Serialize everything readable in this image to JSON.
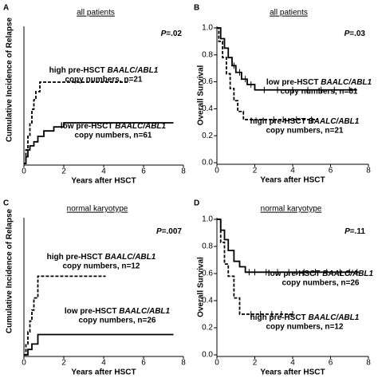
{
  "chart_data": [
    {
      "type": "step",
      "panel": "A",
      "title": "all patients",
      "p_label": "P",
      "p_value": "=.02",
      "ylabel": "Cumulative Incidence of Relapse",
      "xlabel": "Years after HSCT",
      "xlim": [
        0,
        8
      ],
      "xticks": [
        0,
        2,
        4,
        6,
        8
      ],
      "ylim": [
        0,
        1
      ],
      "series": [
        {
          "style": "dashed",
          "color": "#000000",
          "x": [
            0,
            0.1,
            0.2,
            0.3,
            0.4,
            0.5,
            0.6,
            0.8,
            5.3
          ],
          "values": [
            0,
            0.1,
            0.2,
            0.3,
            0.4,
            0.47,
            0.53,
            0.6,
            0.6
          ],
          "label_prefix": "high pre-HSCT ",
          "label_gene": "BAALC/ABL1",
          "label_count": "copy numbers, n=21"
        },
        {
          "style": "solid",
          "color": "#000000",
          "x": [
            0,
            0.1,
            0.2,
            0.3,
            0.5,
            0.7,
            1.0,
            1.5,
            2.0,
            7.5
          ],
          "values": [
            0,
            0.05,
            0.1,
            0.13,
            0.16,
            0.2,
            0.24,
            0.27,
            0.3,
            0.3
          ],
          "label_prefix": "low pre-HSCT ",
          "label_gene": "BAALC/ABL1",
          "label_count": "copy numbers, n=61"
        }
      ]
    },
    {
      "type": "step",
      "panel": "B",
      "title": "all patients",
      "p_label": "P",
      "p_value": "=.03",
      "ylabel": "Overall Survival",
      "xlabel": "Years after HSCT",
      "xlim": [
        0,
        8
      ],
      "xticks": [
        0,
        2,
        4,
        6,
        8
      ],
      "ylim": [
        0,
        1
      ],
      "yticks": [
        {
          "value": 0,
          "label": "0.0"
        },
        0.2,
        0.4,
        0.6,
        0.8,
        {
          "value": 1,
          "label": "1.0"
        }
      ],
      "series": [
        {
          "style": "solid",
          "color": "#000000",
          "x": [
            0,
            0.2,
            0.4,
            0.6,
            0.8,
            1.0,
            1.3,
            1.6,
            2.0,
            7.4
          ],
          "values": [
            1,
            0.92,
            0.85,
            0.78,
            0.72,
            0.67,
            0.62,
            0.58,
            0.54,
            0.54
          ],
          "censor_x": [
            0.9,
            1.2,
            1.5,
            1.8,
            2.5,
            3.2,
            4.0,
            4.8,
            5.5,
            6.2,
            7.0
          ],
          "censor_values": [
            0.72,
            0.67,
            0.62,
            0.58,
            0.54,
            0.54,
            0.54,
            0.54,
            0.54,
            0.54,
            0.54
          ],
          "label_prefix": "low pre-HSCT ",
          "label_gene": "BAALC/ABL1",
          "label_count": "copy numbers, n=61"
        },
        {
          "style": "dashed",
          "color": "#000000",
          "x": [
            0,
            0.1,
            0.3,
            0.5,
            0.7,
            0.9,
            1.1,
            1.4,
            5.3
          ],
          "values": [
            1,
            0.9,
            0.78,
            0.66,
            0.55,
            0.46,
            0.38,
            0.32,
            0.32
          ],
          "censor_x": [
            3.0,
            3.5,
            4.2,
            5.0
          ],
          "censor_values": [
            0.32,
            0.32,
            0.32,
            0.32
          ],
          "label_prefix": "high pre-HSCT ",
          "label_gene": "BAALC/ABL1",
          "label_count": "copy numbers, n=21"
        }
      ]
    },
    {
      "type": "step",
      "panel": "C",
      "title": "normal karyotype",
      "p_label": "P",
      "p_value": "=.007",
      "ylabel": "Cumulative Incidence of Relapse",
      "xlabel": "Years after HSCT",
      "xlim": [
        0,
        8
      ],
      "xticks": [
        0,
        2,
        4,
        6,
        8
      ],
      "ylim": [
        0,
        1
      ],
      "series": [
        {
          "style": "dashed",
          "color": "#000000",
          "x": [
            0,
            0.1,
            0.2,
            0.3,
            0.4,
            0.5,
            0.7,
            4.1
          ],
          "values": [
            0,
            0.08,
            0.17,
            0.25,
            0.33,
            0.42,
            0.58,
            0.58
          ],
          "label_prefix": "high pre-HSCT ",
          "label_gene": "BAALC/ABL1",
          "label_count": "copy numbers, n=12"
        },
        {
          "style": "solid",
          "color": "#000000",
          "x": [
            0,
            0.2,
            0.4,
            0.7,
            7.5
          ],
          "values": [
            0,
            0.04,
            0.08,
            0.15,
            0.15
          ],
          "label_prefix": "low pre-HSCT ",
          "label_gene": "BAALC/ABL1",
          "label_count": "copy numbers, n=26"
        }
      ]
    },
    {
      "type": "step",
      "panel": "D",
      "title": "normal karyotype",
      "p_label": "P",
      "p_value": "=.11",
      "ylabel": "Overall Survival",
      "xlabel": "Years after HSCT",
      "xlim": [
        0,
        8
      ],
      "xticks": [
        0,
        2,
        4,
        6,
        8
      ],
      "ylim": [
        0,
        1
      ],
      "yticks": [
        {
          "value": 0,
          "label": "0.0"
        },
        0.2,
        0.4,
        0.6,
        0.8,
        {
          "value": 1,
          "label": "1.0"
        }
      ],
      "series": [
        {
          "style": "solid",
          "color": "#000000",
          "x": [
            0,
            0.2,
            0.4,
            0.6,
            0.9,
            1.2,
            1.5,
            7.5
          ],
          "values": [
            1,
            0.92,
            0.85,
            0.77,
            0.69,
            0.65,
            0.61,
            0.61
          ],
          "censor_x": [
            1.7,
            2.0,
            2.6,
            3.2,
            3.8,
            4.2,
            4.6,
            5.2,
            5.8,
            6.5,
            7.0,
            7.4
          ],
          "censor_values": [
            0.61,
            0.61,
            0.61,
            0.61,
            0.61,
            0.61,
            0.61,
            0.61,
            0.61,
            0.61,
            0.61,
            0.61
          ],
          "label_prefix": "low pre-HSCT ",
          "label_gene": "BAALC/ABL1",
          "label_count": "copy numbers, n=26"
        },
        {
          "style": "dashed",
          "color": "#000000",
          "x": [
            0,
            0.2,
            0.4,
            0.6,
            0.9,
            1.2,
            4.1
          ],
          "values": [
            1,
            0.83,
            0.67,
            0.58,
            0.42,
            0.3,
            0.3
          ],
          "censor_x": [
            1.8,
            2.3,
            2.9,
            3.4,
            4.0
          ],
          "censor_values": [
            0.3,
            0.3,
            0.3,
            0.3,
            0.3
          ],
          "label_prefix": "high pre-HSCT ",
          "label_gene": "BAALC/ABL1",
          "label_count": "copy numbers, n=12"
        }
      ]
    }
  ]
}
